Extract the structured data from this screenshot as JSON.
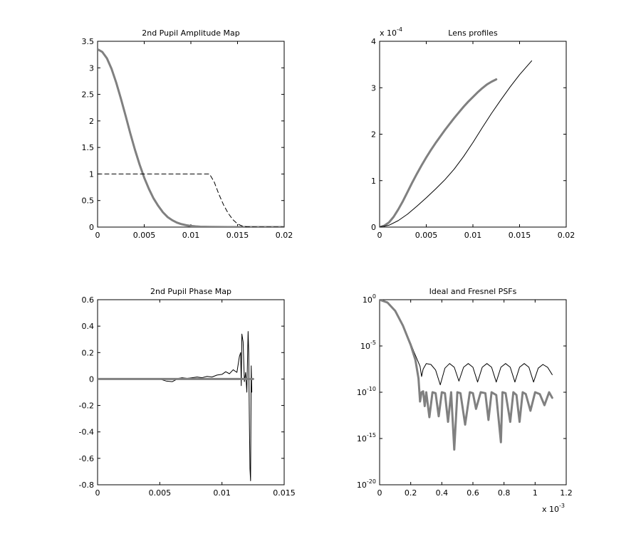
{
  "chart_data": [
    {
      "type": "line",
      "title": "2nd Pupil Amplitude Map",
      "xlim": [
        0,
        0.02
      ],
      "ylim": [
        0,
        3.5
      ],
      "xticks": [
        0,
        0.005,
        0.01,
        0.015,
        0.02
      ],
      "xtick_labels": [
        "0",
        "0.005",
        "0.01",
        "0.015",
        "0.02"
      ],
      "yticks": [
        0,
        0.5,
        1,
        1.5,
        2,
        2.5,
        3,
        3.5
      ],
      "ytick_labels": [
        "0",
        "0.5",
        "1",
        "1.5",
        "2",
        "2.5",
        "3",
        "3.5"
      ],
      "grid": false,
      "series": [
        {
          "style": "thick-gray",
          "color": "#808080",
          "x": [
            0,
            0.0005,
            0.001,
            0.0015,
            0.002,
            0.0025,
            0.003,
            0.0035,
            0.004,
            0.0045,
            0.005,
            0.0055,
            0.006,
            0.0065,
            0.007,
            0.0075,
            0.008,
            0.0085,
            0.009,
            0.0095,
            0.01,
            0.0105,
            0.011,
            0.012,
            0.013,
            0.014,
            0.016,
            0.018,
            0.02
          ],
          "y": [
            3.35,
            3.3,
            3.18,
            2.98,
            2.72,
            2.42,
            2.1,
            1.77,
            1.46,
            1.18,
            0.93,
            0.72,
            0.54,
            0.4,
            0.28,
            0.19,
            0.13,
            0.085,
            0.055,
            0.035,
            0.022,
            0.013,
            0.007,
            0.003,
            0.001,
            0.0003,
            0,
            0,
            0
          ]
        },
        {
          "style": "dashed-black",
          "color": "#000000",
          "x": [
            0,
            0.012,
            0.0125,
            0.013,
            0.0135,
            0.014,
            0.0145,
            0.015,
            0.0155,
            0.016,
            0.017,
            0.018,
            0.02
          ],
          "y": [
            1,
            1,
            0.85,
            0.62,
            0.42,
            0.26,
            0.14,
            0.06,
            0.02,
            0.005,
            0,
            0,
            0
          ]
        }
      ]
    },
    {
      "type": "line",
      "title": "Lens profiles",
      "xlim": [
        0,
        0.02
      ],
      "ylim": [
        0,
        4
      ],
      "xticks": [
        0,
        0.005,
        0.01,
        0.015,
        0.02
      ],
      "xtick_labels": [
        "0",
        "0.005",
        "0.01",
        "0.015",
        "0.02"
      ],
      "yticks": [
        0,
        1,
        2,
        3,
        4
      ],
      "ytick_labels": [
        "0",
        "1",
        "2",
        "3",
        "4"
      ],
      "y_multiplier": "x 10",
      "y_multiplier_exp": "-4",
      "grid": false,
      "series": [
        {
          "style": "thick-gray",
          "color": "#808080",
          "x": [
            0,
            0.0005,
            0.001,
            0.0015,
            0.002,
            0.0025,
            0.003,
            0.0035,
            0.004,
            0.0045,
            0.005,
            0.0055,
            0.006,
            0.0065,
            0.007,
            0.0075,
            0.008,
            0.0085,
            0.009,
            0.0095,
            0.01,
            0.0105,
            0.011,
            0.0115,
            0.012,
            0.0125
          ],
          "y": [
            0,
            0.03,
            0.1,
            0.22,
            0.38,
            0.56,
            0.76,
            0.96,
            1.15,
            1.33,
            1.5,
            1.66,
            1.81,
            1.95,
            2.09,
            2.22,
            2.35,
            2.47,
            2.59,
            2.7,
            2.8,
            2.9,
            2.99,
            3.07,
            3.13,
            3.18
          ]
        },
        {
          "style": "thin-black",
          "color": "#000000",
          "x": [
            0,
            0.001,
            0.002,
            0.003,
            0.004,
            0.005,
            0.006,
            0.007,
            0.008,
            0.009,
            0.01,
            0.011,
            0.012,
            0.013,
            0.014,
            0.015,
            0.0163
          ],
          "y": [
            0,
            0.04,
            0.14,
            0.28,
            0.45,
            0.63,
            0.82,
            1.02,
            1.25,
            1.52,
            1.82,
            2.14,
            2.45,
            2.74,
            3.02,
            3.28,
            3.58
          ]
        }
      ]
    },
    {
      "type": "line",
      "title": "2nd Pupil Phase Map",
      "xlim": [
        0,
        0.015
      ],
      "ylim": [
        -0.8,
        0.6
      ],
      "xticks": [
        0,
        0.005,
        0.01,
        0.015
      ],
      "xtick_labels": [
        "0",
        "0.005",
        "0.01",
        "0.015"
      ],
      "yticks": [
        -0.8,
        -0.6,
        -0.4,
        -0.2,
        0,
        0.2,
        0.4,
        0.6
      ],
      "ytick_labels": [
        "-0.8",
        "-0.6",
        "-0.4",
        "-0.2",
        "0",
        "0.2",
        "0.4",
        "0.6"
      ],
      "grid": false,
      "series": [
        {
          "style": "thin-black",
          "color": "#000000",
          "x": [
            0,
            0.005,
            0.0055,
            0.006,
            0.0065,
            0.0068,
            0.0072,
            0.0076,
            0.008,
            0.0084,
            0.0088,
            0.0092,
            0.0096,
            0.01,
            0.0103,
            0.0106,
            0.0109,
            0.0112,
            0.0114,
            0.0115,
            0.01155,
            0.0116,
            0.0117,
            0.0118,
            0.0119,
            0.012,
            0.0121,
            0.01215,
            0.0122,
            0.01225,
            0.0123,
            0.01235,
            0.0124
          ],
          "y": [
            0,
            0,
            -0.015,
            -0.02,
            0.005,
            0.01,
            0.005,
            0.01,
            0.015,
            0.01,
            0.02,
            0.015,
            0.03,
            0.035,
            0.055,
            0.04,
            0.07,
            0.05,
            0.17,
            0.2,
            -0.05,
            0.34,
            0.28,
            -0.02,
            0.05,
            -0.1,
            0.36,
            0.2,
            -0.3,
            -0.68,
            -0.77,
            0.1,
            -0.1
          ]
        },
        {
          "style": "thick-gray",
          "color": "#808080",
          "x": [
            0,
            0.0125
          ],
          "y": [
            0,
            0
          ]
        }
      ]
    },
    {
      "type": "line",
      "title": "Ideal and Fresnel PSFs",
      "xlim": [
        0,
        1.2
      ],
      "ylim": [
        -20,
        0
      ],
      "y_scale": "log",
      "xticks": [
        0,
        0.2,
        0.4,
        0.6,
        0.8,
        1,
        1.2
      ],
      "xtick_labels": [
        "0",
        "0.2",
        "0.4",
        "0.6",
        "0.8",
        "1",
        "1.2"
      ],
      "x_multiplier": "x 10",
      "x_multiplier_exp": "-3",
      "yticks": [
        0,
        -5,
        -10,
        -15,
        -20
      ],
      "ytick_labels": [
        "10",
        "10",
        "10",
        "10",
        "10"
      ],
      "ytick_exps": [
        "0",
        "-5",
        "-10",
        "-15",
        "-20"
      ],
      "grid": false,
      "series": [
        {
          "style": "thin-black",
          "color": "#000000",
          "x": [
            0,
            0.05,
            0.1,
            0.15,
            0.2,
            0.22,
            0.24,
            0.26,
            0.27,
            0.28,
            0.3,
            0.33,
            0.36,
            0.39,
            0.42,
            0.45,
            0.48,
            0.51,
            0.54,
            0.57,
            0.6,
            0.63,
            0.66,
            0.69,
            0.72,
            0.75,
            0.78,
            0.81,
            0.84,
            0.87,
            0.9,
            0.93,
            0.96,
            0.99,
            1.02,
            1.05,
            1.08,
            1.11
          ],
          "y": [
            0,
            -0.3,
            -1.2,
            -2.8,
            -4.7,
            -5.6,
            -6.4,
            -7.2,
            -8.3,
            -7.5,
            -6.9,
            -7.0,
            -7.6,
            -9.2,
            -7.4,
            -6.9,
            -7.3,
            -8.8,
            -7.3,
            -6.9,
            -7.3,
            -8.9,
            -7.3,
            -6.9,
            -7.3,
            -8.9,
            -7.3,
            -6.9,
            -7.3,
            -8.9,
            -7.3,
            -6.9,
            -7.3,
            -8.9,
            -7.4,
            -7.0,
            -7.3,
            -8.1
          ]
        },
        {
          "style": "thick-gray",
          "color": "#808080",
          "x": [
            0,
            0.05,
            0.1,
            0.15,
            0.2,
            0.23,
            0.25,
            0.26,
            0.27,
            0.28,
            0.29,
            0.3,
            0.32,
            0.34,
            0.36,
            0.38,
            0.4,
            0.42,
            0.44,
            0.46,
            0.48,
            0.5,
            0.52,
            0.55,
            0.58,
            0.6,
            0.62,
            0.65,
            0.68,
            0.7,
            0.72,
            0.75,
            0.78,
            0.79,
            0.81,
            0.84,
            0.86,
            0.88,
            0.9,
            0.92,
            0.94,
            0.97,
            1.0,
            1.03,
            1.06,
            1.09,
            1.11
          ],
          "y": [
            0,
            -0.3,
            -1.2,
            -2.8,
            -4.9,
            -6.5,
            -8.5,
            -11.0,
            -10.0,
            -9.9,
            -11.5,
            -10.0,
            -12.7,
            -10.0,
            -10.1,
            -12.6,
            -10.0,
            -10.1,
            -13.2,
            -10.0,
            -16.2,
            -10.0,
            -10.1,
            -13.5,
            -10.0,
            -10.1,
            -11.8,
            -10.0,
            -10.1,
            -13.0,
            -10.0,
            -10.3,
            -15.4,
            -10.0,
            -10.1,
            -13.2,
            -10.0,
            -10.3,
            -13.2,
            -10.0,
            -10.2,
            -12.0,
            -10.0,
            -10.2,
            -11.4,
            -10.0,
            -10.6
          ]
        }
      ]
    }
  ]
}
